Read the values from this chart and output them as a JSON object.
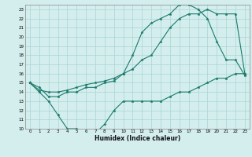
{
  "title": "",
  "xlabel": "Humidex (Indice chaleur)",
  "ylabel": "",
  "bg_color": "#d4eeee",
  "grid_color": "#aad4d4",
  "line_color": "#1a7a6a",
  "xlim": [
    -0.5,
    23.5
  ],
  "ylim": [
    10,
    23.5
  ],
  "xticks": [
    0,
    1,
    2,
    3,
    4,
    5,
    6,
    7,
    8,
    9,
    10,
    11,
    12,
    13,
    14,
    15,
    16,
    17,
    18,
    19,
    20,
    21,
    22,
    23
  ],
  "yticks": [
    10,
    11,
    12,
    13,
    14,
    15,
    16,
    17,
    18,
    19,
    20,
    21,
    22,
    23
  ],
  "series": [
    {
      "x": [
        0,
        1,
        2,
        3,
        4,
        5,
        6,
        7,
        8,
        9,
        10,
        11,
        12,
        13,
        14,
        15,
        16,
        17,
        18,
        19,
        20,
        21,
        22,
        23
      ],
      "y": [
        15,
        14,
        13,
        11.5,
        10,
        10,
        9.7,
        9.5,
        10.5,
        12,
        13,
        13,
        13,
        13,
        13,
        13.5,
        14,
        14,
        14.5,
        15,
        15.5,
        15.5,
        16,
        16
      ]
    },
    {
      "x": [
        0,
        1,
        2,
        3,
        4,
        5,
        6,
        7,
        8,
        9,
        10,
        11,
        12,
        13,
        14,
        15,
        16,
        17,
        18,
        19,
        20,
        21,
        22,
        23
      ],
      "y": [
        15,
        14.2,
        14,
        14,
        14.2,
        14.5,
        14.8,
        15,
        15.2,
        15.5,
        16,
        16.5,
        17.5,
        18,
        19.5,
        21,
        22,
        22.5,
        22.5,
        23,
        22.5,
        22.5,
        22.5,
        16
      ]
    },
    {
      "x": [
        0,
        1,
        2,
        3,
        4,
        5,
        6,
        7,
        8,
        9,
        10,
        11,
        12,
        13,
        14,
        15,
        16,
        17,
        18,
        19,
        20,
        21,
        22,
        23
      ],
      "y": [
        15,
        14.5,
        13.5,
        13.5,
        14,
        14,
        14.5,
        14.5,
        15,
        15.2,
        16,
        18,
        20.5,
        21.5,
        22,
        22.5,
        23.5,
        23.5,
        23,
        22,
        19.5,
        17.5,
        17.5,
        15.8
      ]
    }
  ]
}
